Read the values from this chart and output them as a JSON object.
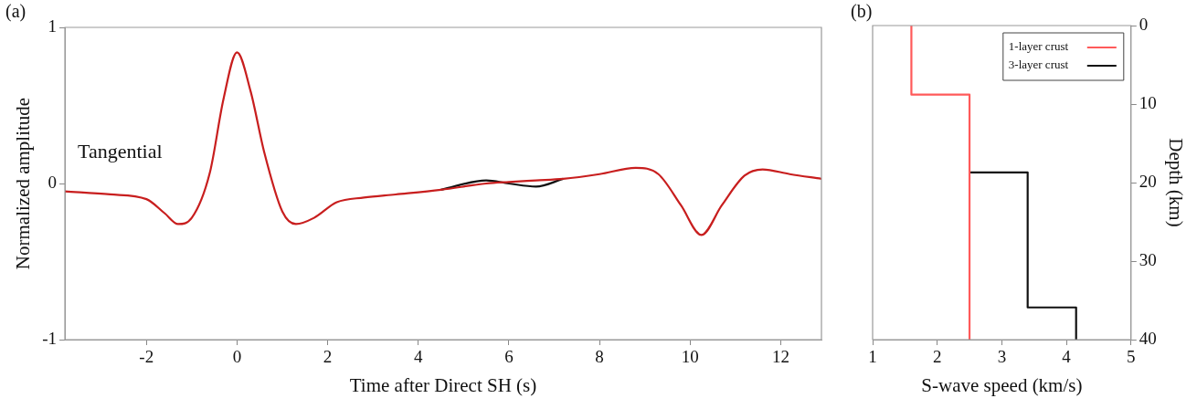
{
  "chart_data": [
    {
      "type": "line",
      "xlabel": "Time after Direct SH (s)",
      "ylabel": "Normalized amplitude",
      "annotations": [
        "(a)",
        "Tangential"
      ],
      "xlim": [
        -3.8,
        12.9
      ],
      "xticks": [
        -2,
        0,
        2,
        4,
        6,
        8,
        10,
        12
      ],
      "ylim": [
        -1,
        1
      ],
      "yticks": [
        -1,
        0,
        1
      ],
      "marker": "none",
      "line_style": "solid",
      "x": [
        -3.8,
        -2.8,
        -2,
        -1.6,
        -1.3,
        -1,
        -0.6,
        -0.3,
        0,
        0.3,
        0.6,
        1,
        1.3,
        1.7,
        2.2,
        2.8,
        3.5,
        4.5,
        5.5,
        6,
        6.6,
        7.2,
        8,
        8.8,
        9.3,
        9.8,
        10.25,
        10.7,
        11.2,
        11.6,
        12.2,
        12.9
      ],
      "series": [
        {
          "color": "#c81e1e",
          "values": [
            -0.05,
            -0.07,
            -0.1,
            -0.19,
            -0.26,
            -0.22,
            0.07,
            0.54,
            0.84,
            0.59,
            0.2,
            -0.18,
            -0.26,
            -0.22,
            -0.12,
            -0.09,
            -0.07,
            -0.04,
            0,
            0.01,
            0.02,
            0.03,
            0.06,
            0.1,
            0.06,
            -0.14,
            -0.33,
            -0.14,
            0.05,
            0.09,
            0.06,
            0.03
          ]
        },
        {
          "color": "#111111",
          "values": [
            null,
            null,
            null,
            null,
            null,
            null,
            null,
            null,
            null,
            null,
            null,
            null,
            null,
            null,
            null,
            null,
            null,
            -0.04,
            0.02,
            0,
            -0.02,
            0.03,
            null,
            null,
            null,
            null,
            null,
            null,
            null,
            null,
            null,
            null
          ]
        }
      ]
    },
    {
      "type": "line",
      "xlabel": "S-wave speed (km/s)",
      "y2label": "Depth (km)",
      "annotations": [
        "(b)"
      ],
      "xlim": [
        1,
        5
      ],
      "xticks": [
        1,
        2,
        3,
        4,
        5
      ],
      "y2lim": [
        40,
        0
      ],
      "y2ticks": [
        0,
        10,
        20,
        30,
        40
      ],
      "legend": "top right",
      "marker": "none",
      "line_style": "solid",
      "series": [
        {
          "name": "1-layer crust",
          "color": "#ff5a5a",
          "axis": "y2",
          "x": [
            1.6,
            1.6,
            2.5,
            2.5
          ],
          "values": [
            0,
            8.8,
            8.8,
            40
          ]
        },
        {
          "name": "3-layer crust",
          "color": "#111111",
          "axis": "y2",
          "x": [
            2.5,
            3.4,
            3.4,
            4.15,
            4.15
          ],
          "values": [
            18.7,
            18.7,
            35.9,
            35.9,
            40
          ]
        }
      ]
    }
  ]
}
